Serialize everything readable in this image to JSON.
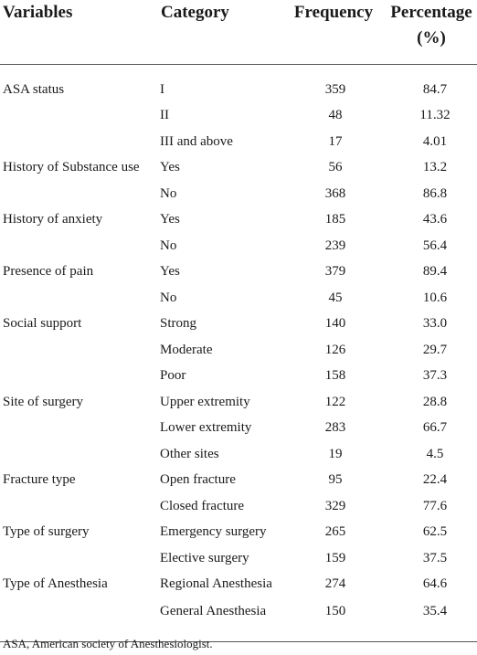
{
  "table": {
    "headers": {
      "variables": "Variables",
      "category": "Category",
      "frequency": "Frequency",
      "percentage_line1": "Percentage",
      "percentage_line2": "(%)"
    },
    "rows": [
      {
        "variable": "ASA status",
        "category": "I",
        "frequency": "359",
        "percentage": "84.7"
      },
      {
        "variable": "",
        "category": "II",
        "frequency": "48",
        "percentage": "11.32"
      },
      {
        "variable": "",
        "category": "III and above",
        "frequency": "17",
        "percentage": "4.01"
      },
      {
        "variable": "History of Substance use",
        "category": "Yes",
        "frequency": "56",
        "percentage": "13.2"
      },
      {
        "variable": "",
        "category": "No",
        "frequency": "368",
        "percentage": "86.8"
      },
      {
        "variable": "History of anxiety",
        "category": "Yes",
        "frequency": "185",
        "percentage": "43.6"
      },
      {
        "variable": "",
        "category": "No",
        "frequency": "239",
        "percentage": "56.4"
      },
      {
        "variable": "Presence of pain",
        "category": "Yes",
        "frequency": "379",
        "percentage": "89.4"
      },
      {
        "variable": "",
        "category": "No",
        "frequency": "45",
        "percentage": "10.6"
      },
      {
        "variable": "Social support",
        "category": "Strong",
        "frequency": "140",
        "percentage": "33.0"
      },
      {
        "variable": "",
        "category": "Moderate",
        "frequency": "126",
        "percentage": "29.7"
      },
      {
        "variable": "",
        "category": "Poor",
        "frequency": "158",
        "percentage": "37.3"
      },
      {
        "variable": "Site of surgery",
        "category": "Upper extremity",
        "frequency": "122",
        "percentage": "28.8"
      },
      {
        "variable": "",
        "category": "Lower extremity",
        "frequency": "283",
        "percentage": "66.7"
      },
      {
        "variable": "",
        "category": "Other sites",
        "frequency": "19",
        "percentage": "4.5"
      },
      {
        "variable": "Fracture type",
        "category": "Open fracture",
        "frequency": "95",
        "percentage": "22.4"
      },
      {
        "variable": "",
        "category": "Closed fracture",
        "frequency": "329",
        "percentage": "77.6"
      },
      {
        "variable": "Type of surgery",
        "category": "Emergency surgery",
        "frequency": "265",
        "percentage": "62.5"
      },
      {
        "variable": "",
        "category": "Elective surgery",
        "frequency": "159",
        "percentage": "37.5"
      },
      {
        "variable": "Type of Anesthesia",
        "category": "Regional Anesthesia",
        "frequency": "274",
        "percentage": "64.6"
      },
      {
        "variable": "",
        "category": "General Anesthesia",
        "frequency": "150",
        "percentage": "35.4"
      }
    ],
    "footnote": "ASA, American society of Anesthesiologist."
  }
}
